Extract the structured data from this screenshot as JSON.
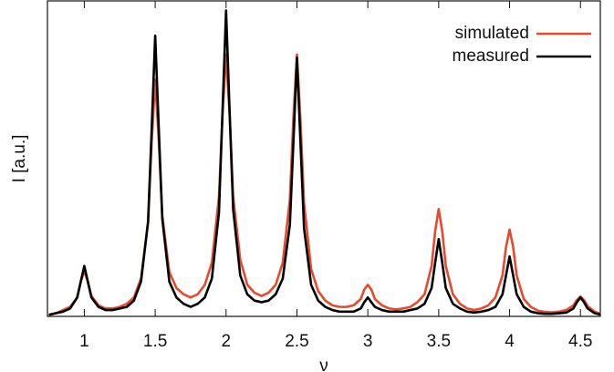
{
  "chart_data": {
    "type": "line",
    "xlabel": "ν",
    "ylabel": "I [a.u.]",
    "xlim": [
      0.74,
      4.64
    ],
    "ylim": [
      0,
      1
    ],
    "xticks": [
      1,
      1.5,
      2,
      2.5,
      3,
      3.5,
      4,
      4.5
    ],
    "legend": "top right",
    "x": [
      0.75,
      0.8,
      0.85,
      0.9,
      0.95,
      0.975,
      1,
      1.025,
      1.05,
      1.1,
      1.15,
      1.2,
      1.25,
      1.3,
      1.35,
      1.4,
      1.45,
      1.475,
      1.5,
      1.525,
      1.55,
      1.6,
      1.65,
      1.7,
      1.75,
      1.8,
      1.85,
      1.9,
      1.95,
      1.975,
      2,
      2.025,
      2.05,
      2.1,
      2.15,
      2.2,
      2.25,
      2.3,
      2.35,
      2.4,
      2.45,
      2.475,
      2.5,
      2.525,
      2.55,
      2.6,
      2.65,
      2.7,
      2.75,
      2.8,
      2.85,
      2.9,
      2.95,
      2.975,
      3,
      3.025,
      3.05,
      3.1,
      3.15,
      3.2,
      3.25,
      3.3,
      3.35,
      3.4,
      3.45,
      3.475,
      3.5,
      3.525,
      3.55,
      3.6,
      3.65,
      3.7,
      3.75,
      3.8,
      3.85,
      3.9,
      3.95,
      3.975,
      4,
      4.025,
      4.05,
      4.1,
      4.15,
      4.2,
      4.25,
      4.3,
      4.35,
      4.4,
      4.45,
      4.475,
      4.5,
      4.525,
      4.55,
      4.6,
      4.64
    ],
    "series": [
      {
        "name": "simulated",
        "color": "#e8492b",
        "values": [
          0.005,
          0.01,
          0.02,
          0.03,
          0.06,
          0.11,
          0.145,
          0.11,
          0.065,
          0.035,
          0.025,
          0.025,
          0.03,
          0.04,
          0.06,
          0.12,
          0.3,
          0.55,
          0.75,
          0.56,
          0.32,
          0.14,
          0.09,
          0.07,
          0.06,
          0.07,
          0.1,
          0.17,
          0.38,
          0.64,
          0.83,
          0.64,
          0.38,
          0.18,
          0.1,
          0.075,
          0.065,
          0.075,
          0.1,
          0.17,
          0.37,
          0.63,
          0.83,
          0.62,
          0.36,
          0.15,
          0.08,
          0.05,
          0.035,
          0.03,
          0.03,
          0.035,
          0.055,
          0.085,
          0.1,
          0.085,
          0.055,
          0.035,
          0.025,
          0.022,
          0.025,
          0.03,
          0.045,
          0.07,
          0.16,
          0.27,
          0.34,
          0.27,
          0.16,
          0.07,
          0.04,
          0.025,
          0.02,
          0.025,
          0.035,
          0.06,
          0.13,
          0.22,
          0.275,
          0.22,
          0.13,
          0.055,
          0.03,
          0.018,
          0.014,
          0.013,
          0.015,
          0.02,
          0.035,
          0.052,
          0.063,
          0.052,
          0.033,
          0.015,
          0.008
        ]
      },
      {
        "name": "measured",
        "color": "#000000",
        "values": [
          0.005,
          0.01,
          0.015,
          0.025,
          0.06,
          0.11,
          0.16,
          0.11,
          0.06,
          0.03,
          0.02,
          0.02,
          0.025,
          0.03,
          0.05,
          0.11,
          0.3,
          0.59,
          0.89,
          0.6,
          0.31,
          0.11,
          0.06,
          0.04,
          0.03,
          0.04,
          0.06,
          0.12,
          0.33,
          0.65,
          0.97,
          0.65,
          0.34,
          0.13,
          0.07,
          0.05,
          0.045,
          0.05,
          0.07,
          0.12,
          0.29,
          0.55,
          0.82,
          0.55,
          0.28,
          0.1,
          0.05,
          0.03,
          0.02,
          0.015,
          0.015,
          0.015,
          0.025,
          0.045,
          0.06,
          0.045,
          0.03,
          0.02,
          0.015,
          0.015,
          0.015,
          0.02,
          0.025,
          0.04,
          0.09,
          0.17,
          0.245,
          0.17,
          0.09,
          0.04,
          0.025,
          0.015,
          0.012,
          0.015,
          0.02,
          0.03,
          0.07,
          0.13,
          0.19,
          0.13,
          0.07,
          0.03,
          0.015,
          0.01,
          0.008,
          0.008,
          0.01,
          0.012,
          0.025,
          0.045,
          0.06,
          0.045,
          0.025,
          0.01,
          0.006
        ]
      }
    ]
  }
}
